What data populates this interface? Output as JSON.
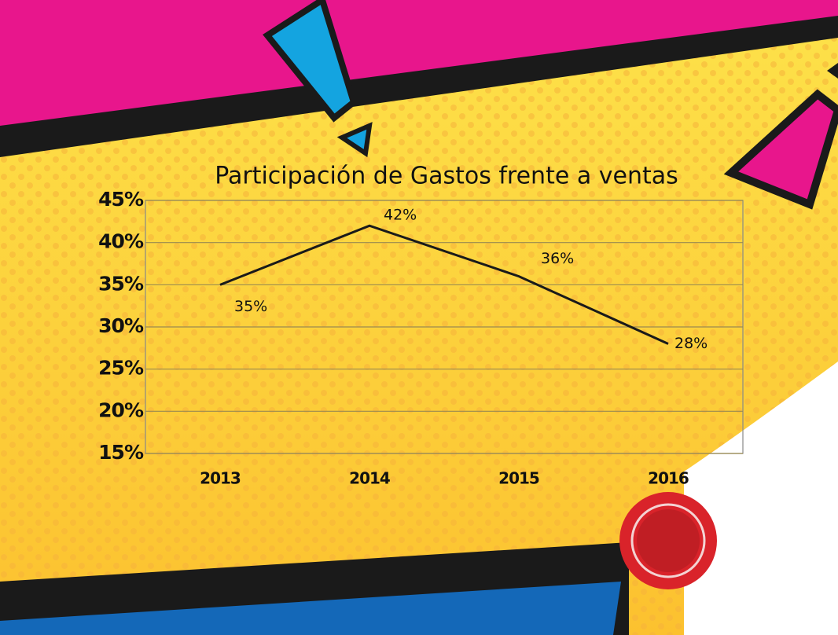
{
  "chart_data": {
    "type": "line",
    "title": "Participación de Gastos frente a ventas",
    "categories": [
      "2013",
      "2014",
      "2015",
      "2016"
    ],
    "series": [
      {
        "color": "#1a1a1a",
        "values": [
          35,
          42,
          36,
          28
        ],
        "value_labels": [
          "35%",
          "42%",
          "36%",
          "28%"
        ]
      }
    ],
    "ylim": [
      15,
      45
    ],
    "yticks": [
      {
        "value": 15,
        "label": "15%"
      },
      {
        "value": 20,
        "label": "20%"
      },
      {
        "value": 25,
        "label": "25%"
      },
      {
        "value": 30,
        "label": "30%"
      },
      {
        "value": 35,
        "label": "35%"
      },
      {
        "value": 40,
        "label": "40%"
      },
      {
        "value": 45,
        "label": "45%"
      }
    ],
    "grid": true
  }
}
